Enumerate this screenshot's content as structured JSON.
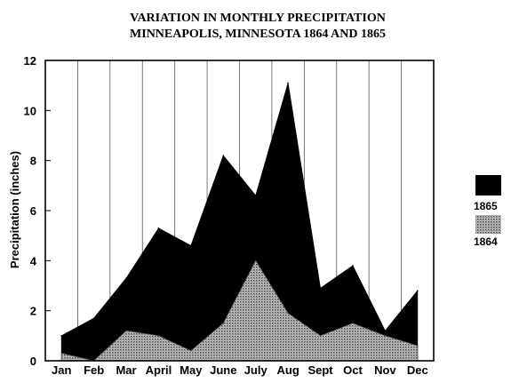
{
  "chart_data": {
    "type": "area",
    "title": [
      "VARIATION IN MONTHLY PRECIPITATION",
      "MINNEAPOLIS, MINNESOTA 1864 AND 1865"
    ],
    "xlabel": "",
    "ylabel": "Precipitation (inches)",
    "ylim": [
      0,
      12
    ],
    "yticks": [
      0,
      2,
      4,
      6,
      8,
      10,
      12
    ],
    "categories": [
      "Jan",
      "Feb",
      "Mar",
      "April",
      "May",
      "June",
      "July",
      "Aug",
      "Sept",
      "Oct",
      "Nov",
      "Dec"
    ],
    "grid": "vertical",
    "legend_position": "right",
    "series": [
      {
        "name": "1865",
        "color": "#000000",
        "pattern": "solid",
        "values": [
          1.0,
          1.7,
          3.3,
          5.3,
          4.6,
          8.2,
          6.6,
          11.1,
          2.9,
          3.8,
          1.2,
          2.8
        ]
      },
      {
        "name": "1864",
        "color": "#7a7a7a",
        "pattern": "dotted",
        "values": [
          0.3,
          0.0,
          1.2,
          1.0,
          0.4,
          1.5,
          4.0,
          1.9,
          1.0,
          1.5,
          1.0,
          0.6
        ]
      }
    ]
  }
}
